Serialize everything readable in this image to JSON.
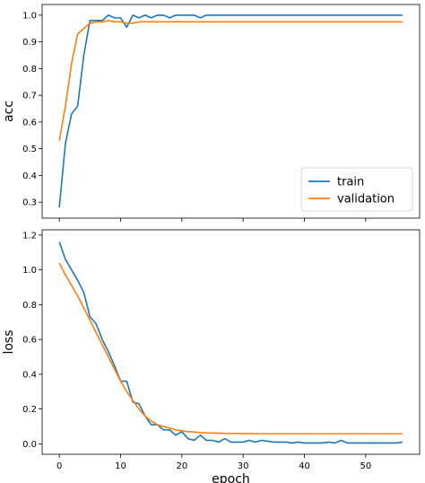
{
  "chart_data": [
    {
      "type": "line",
      "xlabel": "",
      "ylabel": "acc",
      "xlim": [
        -2.8,
        58.8
      ],
      "ylim": [
        0.24,
        1.04
      ],
      "xticks": [
        0,
        10,
        20,
        30,
        40,
        50
      ],
      "yticks": [
        0.3,
        0.4,
        0.5,
        0.6,
        0.7,
        0.8,
        0.9,
        1.0
      ],
      "ytick_labels": [
        "0.3",
        "0.4",
        "0.5",
        "0.6",
        "0.7",
        "0.8",
        "0.9",
        "1.0"
      ],
      "show_xtick_labels": false,
      "grid": false,
      "legend": {
        "placement": "lower-right",
        "entries": [
          "train",
          "validation"
        ]
      },
      "x": [
        0,
        1,
        2,
        3,
        4,
        5,
        6,
        7,
        8,
        9,
        10,
        11,
        12,
        13,
        14,
        15,
        16,
        17,
        18,
        19,
        20,
        21,
        22,
        23,
        24,
        25,
        26,
        27,
        28,
        29,
        30,
        31,
        32,
        33,
        34,
        35,
        36,
        37,
        38,
        39,
        40,
        41,
        42,
        43,
        44,
        45,
        46,
        47,
        48,
        49,
        50,
        51,
        52,
        53,
        54,
        55,
        56
      ],
      "series": [
        {
          "name": "train",
          "color": "#1f77b4",
          "values": [
            0.28,
            0.52,
            0.63,
            0.66,
            0.85,
            0.98,
            0.98,
            0.98,
            1.0,
            0.99,
            0.99,
            0.955,
            1.0,
            0.99,
            1.0,
            0.99,
            1.0,
            1.0,
            0.99,
            1.0,
            1.0,
            1.0,
            1.0,
            0.99,
            1.0,
            1.0,
            1.0,
            1.0,
            1.0,
            1.0,
            1.0,
            1.0,
            1.0,
            1.0,
            1.0,
            1.0,
            1.0,
            1.0,
            1.0,
            1.0,
            1.0,
            1.0,
            1.0,
            1.0,
            1.0,
            1.0,
            1.0,
            1.0,
            1.0,
            1.0,
            1.0,
            1.0,
            1.0,
            1.0,
            1.0,
            1.0,
            1.0
          ]
        },
        {
          "name": "validation",
          "color": "#ff7f0e",
          "values": [
            0.53,
            0.66,
            0.82,
            0.93,
            0.95,
            0.97,
            0.975,
            0.975,
            0.98,
            0.975,
            0.975,
            0.97,
            0.97,
            0.975,
            0.975,
            0.975,
            0.975,
            0.975,
            0.975,
            0.975,
            0.975,
            0.975,
            0.975,
            0.975,
            0.975,
            0.975,
            0.975,
            0.975,
            0.975,
            0.975,
            0.975,
            0.975,
            0.975,
            0.975,
            0.975,
            0.975,
            0.975,
            0.975,
            0.975,
            0.975,
            0.975,
            0.975,
            0.975,
            0.975,
            0.975,
            0.975,
            0.975,
            0.975,
            0.975,
            0.975,
            0.975,
            0.975,
            0.975,
            0.975,
            0.975,
            0.975,
            0.975
          ]
        }
      ]
    },
    {
      "type": "line",
      "xlabel": "epoch",
      "ylabel": "loss",
      "xlim": [
        -2.8,
        58.8
      ],
      "ylim": [
        -0.06,
        1.23
      ],
      "xticks": [
        0,
        10,
        20,
        30,
        40,
        50
      ],
      "yticks": [
        0.0,
        0.2,
        0.4,
        0.6,
        0.8,
        1.0,
        1.2
      ],
      "ytick_labels": [
        "0.0",
        "0.2",
        "0.4",
        "0.6",
        "0.8",
        "1.0",
        "1.2"
      ],
      "show_xtick_labels": true,
      "grid": false,
      "x": [
        0,
        1,
        2,
        3,
        4,
        5,
        6,
        7,
        8,
        9,
        10,
        11,
        12,
        13,
        14,
        15,
        16,
        17,
        18,
        19,
        20,
        21,
        22,
        23,
        24,
        25,
        26,
        27,
        28,
        29,
        30,
        31,
        32,
        33,
        34,
        35,
        36,
        37,
        38,
        39,
        40,
        41,
        42,
        43,
        44,
        45,
        46,
        47,
        48,
        49,
        50,
        51,
        52,
        53,
        54,
        55,
        56
      ],
      "series": [
        {
          "name": "train",
          "color": "#1f77b4",
          "values": [
            1.16,
            1.06,
            1.0,
            0.94,
            0.87,
            0.73,
            0.69,
            0.6,
            0.53,
            0.45,
            0.36,
            0.36,
            0.24,
            0.23,
            0.16,
            0.11,
            0.11,
            0.08,
            0.08,
            0.05,
            0.07,
            0.03,
            0.02,
            0.05,
            0.02,
            0.02,
            0.01,
            0.03,
            0.01,
            0.01,
            0.01,
            0.02,
            0.01,
            0.02,
            0.015,
            0.01,
            0.01,
            0.01,
            0.005,
            0.01,
            0.005,
            0.005,
            0.005,
            0.005,
            0.01,
            0.005,
            0.02,
            0.005,
            0.005,
            0.005,
            0.005,
            0.005,
            0.005,
            0.005,
            0.005,
            0.005,
            0.01
          ]
        },
        {
          "name": "validation",
          "color": "#ff7f0e",
          "values": [
            1.04,
            0.97,
            0.91,
            0.85,
            0.78,
            0.71,
            0.64,
            0.57,
            0.5,
            0.43,
            0.36,
            0.3,
            0.25,
            0.2,
            0.16,
            0.13,
            0.11,
            0.1,
            0.09,
            0.08,
            0.075,
            0.07,
            0.068,
            0.065,
            0.063,
            0.062,
            0.061,
            0.06,
            0.06,
            0.06,
            0.059,
            0.059,
            0.058,
            0.058,
            0.058,
            0.058,
            0.058,
            0.058,
            0.058,
            0.058,
            0.058,
            0.058,
            0.058,
            0.058,
            0.058,
            0.058,
            0.058,
            0.058,
            0.058,
            0.058,
            0.058,
            0.058,
            0.058,
            0.058,
            0.058,
            0.058,
            0.058
          ]
        }
      ]
    }
  ]
}
